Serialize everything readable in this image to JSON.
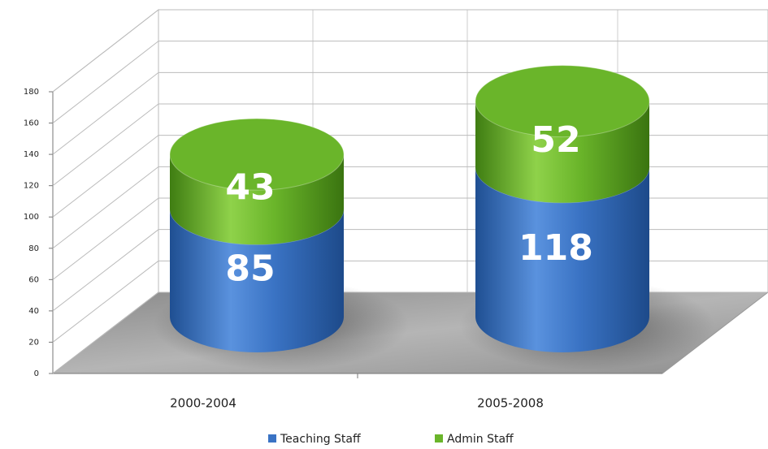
{
  "chart_data": {
    "type": "bar",
    "categories": [
      "2000-2004",
      "2005-2008"
    ],
    "series": [
      {
        "name": "Teaching Staff",
        "color": "#3a73c4",
        "values": [
          85,
          118
        ]
      },
      {
        "name": "Admin Staff",
        "color": "#6ab52a",
        "values": [
          43,
          52
        ]
      }
    ],
    "ylim": [
      0,
      180
    ],
    "yticks": [
      0,
      20,
      40,
      60,
      80,
      100,
      120,
      140,
      160,
      180
    ],
    "grid": true,
    "legend": "bottom"
  }
}
